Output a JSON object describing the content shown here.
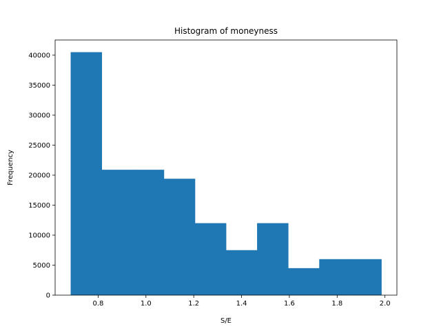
{
  "chart_data": {
    "type": "bar",
    "title": "Histogram of moneyness",
    "xlabel": "S/E",
    "ylabel": "Frequency",
    "bin_edges": [
      0.685,
      0.815,
      0.945,
      1.075,
      1.205,
      1.335,
      1.465,
      1.595,
      1.725,
      1.855,
      1.985
    ],
    "values": [
      40500,
      20900,
      20900,
      19400,
      12000,
      7500,
      12000,
      4500,
      6000,
      6000
    ],
    "xlim": [
      0.62,
      2.05
    ],
    "ylim": [
      0,
      42525
    ],
    "xticks": [
      0.8,
      1.0,
      1.2,
      1.4,
      1.6,
      1.8,
      2.0
    ],
    "xtick_labels": [
      "0.8",
      "1.0",
      "1.2",
      "1.4",
      "1.6",
      "1.8",
      "2.0"
    ],
    "yticks": [
      0,
      5000,
      10000,
      15000,
      20000,
      25000,
      30000,
      35000,
      40000
    ],
    "ytick_labels": [
      "0",
      "5000",
      "10000",
      "15000",
      "20000",
      "25000",
      "30000",
      "35000",
      "40000"
    ],
    "grid": false,
    "bar_color": "#1f77b4"
  }
}
